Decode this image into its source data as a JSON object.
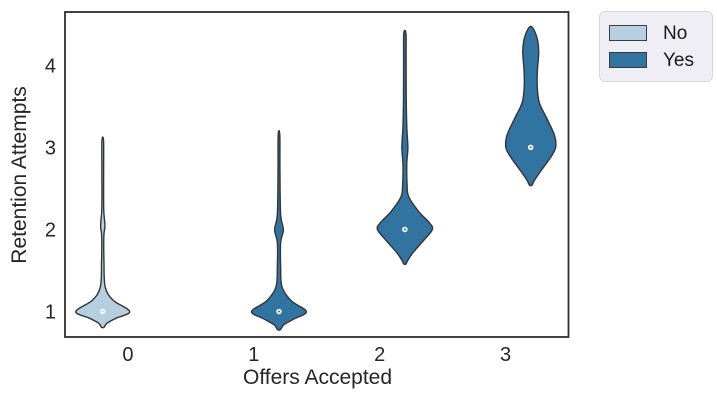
{
  "figure": {
    "background": "#ffffff",
    "text_color": "#262626",
    "spine_color": "#2e2e2e",
    "violin_edge_color": "#343434"
  },
  "chart_data": {
    "type": "violin",
    "title": "",
    "xlabel": "Offers Accepted",
    "ylabel": "Retention Attempts",
    "x_tick_labels": [
      "0",
      "1",
      "2",
      "3"
    ],
    "y_tick_labels": [
      "1",
      "2",
      "3",
      "4"
    ],
    "xlim": [
      -0.5,
      3.5
    ],
    "ylim": [
      0.69,
      4.65
    ],
    "grid": false,
    "legend": {
      "position": "upper-right-outside",
      "entries": [
        {
          "label": "No",
          "color": "#b5cfe0"
        },
        {
          "label": "Yes",
          "color": "#3274a1"
        }
      ]
    },
    "series": [
      {
        "category": "0",
        "hue": "No",
        "color": "#b5cfe0",
        "offset": -0.2,
        "median": 1.0,
        "value_range": [
          0.81,
          3.08
        ],
        "max_halfwidth_units": 0.214,
        "profile": [
          [
            3.08,
            0.03
          ],
          [
            2.7,
            0.032
          ],
          [
            2.25,
            0.035
          ],
          [
            2.05,
            0.08
          ],
          [
            1.92,
            0.04
          ],
          [
            1.6,
            0.045
          ],
          [
            1.3,
            0.09
          ],
          [
            1.14,
            0.38
          ],
          [
            1.0,
            1.0
          ],
          [
            0.92,
            0.5
          ],
          [
            0.86,
            0.16
          ],
          [
            0.81,
            0.05
          ]
        ]
      },
      {
        "category": "1",
        "hue": "Yes",
        "color": "#3274a1",
        "offset": 0.2,
        "median": 1.0,
        "value_range": [
          0.78,
          3.15
        ],
        "max_halfwidth_units": 0.218,
        "profile": [
          [
            3.15,
            0.03
          ],
          [
            2.7,
            0.035
          ],
          [
            2.18,
            0.06
          ],
          [
            2.0,
            0.16
          ],
          [
            1.84,
            0.06
          ],
          [
            1.55,
            0.06
          ],
          [
            1.3,
            0.11
          ],
          [
            1.13,
            0.45
          ],
          [
            1.0,
            1.0
          ],
          [
            0.91,
            0.55
          ],
          [
            0.84,
            0.18
          ],
          [
            0.78,
            0.05
          ]
        ]
      },
      {
        "category": "2",
        "hue": "Yes",
        "color": "#3274a1",
        "offset": 0.2,
        "median": 2.0,
        "value_range": [
          1.58,
          4.39
        ],
        "max_halfwidth_units": 0.218,
        "profile": [
          [
            4.39,
            0.04
          ],
          [
            4.1,
            0.045
          ],
          [
            3.6,
            0.05
          ],
          [
            3.25,
            0.07
          ],
          [
            3.0,
            0.11
          ],
          [
            2.8,
            0.07
          ],
          [
            2.55,
            0.08
          ],
          [
            2.4,
            0.14
          ],
          [
            2.22,
            0.5
          ],
          [
            2.08,
            0.9
          ],
          [
            2.0,
            1.0
          ],
          [
            1.88,
            0.72
          ],
          [
            1.72,
            0.3
          ],
          [
            1.62,
            0.1
          ],
          [
            1.58,
            0.04
          ]
        ]
      },
      {
        "category": "3",
        "hue": "Yes",
        "color": "#3274a1",
        "offset": 0.2,
        "median": 3.0,
        "value_range": [
          2.54,
          4.47
        ],
        "max_halfwidth_units": 0.198,
        "profile": [
          [
            4.47,
            0.04
          ],
          [
            4.42,
            0.15
          ],
          [
            4.3,
            0.28
          ],
          [
            4.15,
            0.32
          ],
          [
            3.95,
            0.27
          ],
          [
            3.75,
            0.26
          ],
          [
            3.55,
            0.34
          ],
          [
            3.35,
            0.65
          ],
          [
            3.15,
            0.95
          ],
          [
            3.0,
            1.0
          ],
          [
            2.88,
            0.8
          ],
          [
            2.72,
            0.42
          ],
          [
            2.6,
            0.15
          ],
          [
            2.54,
            0.05
          ]
        ]
      }
    ]
  }
}
